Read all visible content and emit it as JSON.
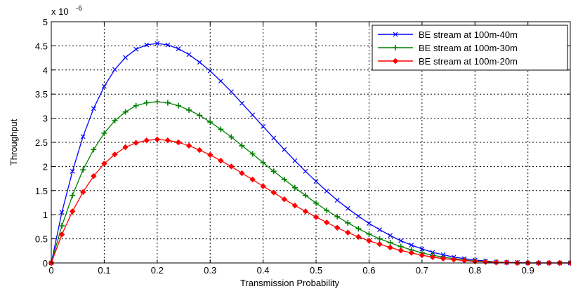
{
  "chart_data": {
    "type": "line",
    "xlabel": "Transmission Probability",
    "ylabel": "Throughput",
    "y_exponent_label": "x 10",
    "y_exponent_power": "-6",
    "xlim": [
      0,
      0.98
    ],
    "ylim": [
      0,
      5
    ],
    "x_ticks": [
      0,
      0.1,
      0.2,
      0.3,
      0.4,
      0.5,
      0.6,
      0.7,
      0.8,
      0.9
    ],
    "x_tick_labels": [
      "0",
      "0.1",
      "0.2",
      "0.3",
      "0.4",
      "0.5",
      "0.6",
      "0.7",
      "0.8",
      "0.9"
    ],
    "y_ticks": [
      0,
      0.5,
      1,
      1.5,
      2,
      2.5,
      3,
      3.5,
      4,
      4.5,
      5
    ],
    "y_tick_labels": [
      "0",
      "0.5",
      "1",
      "1.5",
      "2",
      "2.5",
      "3",
      "3.5",
      "4",
      "4.5",
      "5"
    ],
    "grid": true,
    "grid_style": "dotted",
    "legend_position": "top-right",
    "x": [
      0,
      0.02,
      0.04,
      0.06,
      0.08,
      0.1,
      0.12,
      0.14,
      0.16,
      0.18,
      0.2,
      0.22,
      0.24,
      0.26,
      0.28,
      0.3,
      0.32,
      0.34,
      0.36,
      0.38,
      0.4,
      0.42,
      0.44,
      0.46,
      0.48,
      0.5,
      0.52,
      0.54,
      0.56,
      0.58,
      0.6,
      0.62,
      0.64,
      0.66,
      0.68,
      0.7,
      0.72,
      0.74,
      0.76,
      0.78,
      0.8,
      0.82,
      0.84,
      0.86,
      0.88,
      0.9,
      0.92,
      0.94,
      0.96,
      0.98
    ],
    "series": [
      {
        "name": "BE stream at 100m-40m",
        "color": "#0000ff",
        "marker": "x",
        "values": [
          0,
          1.05,
          1.9,
          2.62,
          3.2,
          3.66,
          4.01,
          4.26,
          4.43,
          4.52,
          4.55,
          4.52,
          4.44,
          4.32,
          4.16,
          3.98,
          3.77,
          3.55,
          3.31,
          3.07,
          2.83,
          2.59,
          2.35,
          2.12,
          1.9,
          1.69,
          1.49,
          1.3,
          1.13,
          0.97,
          0.82,
          0.69,
          0.57,
          0.46,
          0.37,
          0.29,
          0.22,
          0.17,
          0.12,
          0.09,
          0.06,
          0.04,
          0.02,
          0.01,
          0.01,
          0.0,
          0.0,
          0.0,
          0.0,
          0.0
        ]
      },
      {
        "name": "BE stream at 100m-30m",
        "color": "#008000",
        "marker": "+",
        "values": [
          0,
          0.77,
          1.4,
          1.93,
          2.35,
          2.69,
          2.95,
          3.13,
          3.26,
          3.32,
          3.34,
          3.32,
          3.26,
          3.17,
          3.06,
          2.92,
          2.77,
          2.61,
          2.43,
          2.26,
          2.08,
          1.9,
          1.73,
          1.56,
          1.4,
          1.24,
          1.09,
          0.96,
          0.83,
          0.71,
          0.6,
          0.5,
          0.42,
          0.34,
          0.27,
          0.21,
          0.16,
          0.12,
          0.09,
          0.06,
          0.04,
          0.03,
          0.02,
          0.01,
          0.0,
          0.0,
          0.0,
          0.0,
          0.0,
          0.0
        ]
      },
      {
        "name": "BE stream at 100m-20m",
        "color": "#ff0000",
        "marker": "diamond",
        "values": [
          0,
          0.59,
          1.07,
          1.47,
          1.8,
          2.06,
          2.25,
          2.4,
          2.49,
          2.54,
          2.56,
          2.54,
          2.5,
          2.43,
          2.34,
          2.24,
          2.12,
          2.0,
          1.86,
          1.73,
          1.59,
          1.46,
          1.32,
          1.19,
          1.07,
          0.95,
          0.84,
          0.73,
          0.63,
          0.54,
          0.46,
          0.39,
          0.32,
          0.26,
          0.21,
          0.16,
          0.12,
          0.09,
          0.07,
          0.05,
          0.03,
          0.02,
          0.01,
          0.01,
          0.0,
          0.0,
          0.0,
          0.0,
          0.0,
          0.0
        ]
      }
    ]
  }
}
